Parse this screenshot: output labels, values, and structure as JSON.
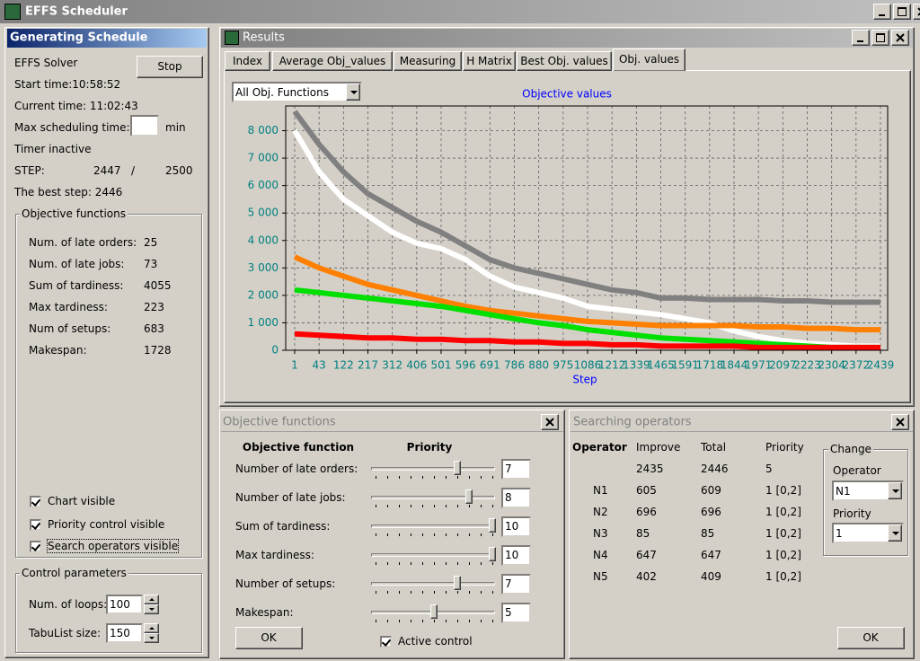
{
  "window": {
    "title": "EFFS Scheduler"
  },
  "generating": {
    "title": "Generating Schedule",
    "solver": "EFFS Solver",
    "stop_button": "Stop",
    "start_time": "Start time:10:58:52",
    "current_time": "Current time: 11:02:43",
    "max_time_label": "Max scheduling time:",
    "max_time_unit": "min",
    "timer": "Timer inactive",
    "step_label": "STEP:",
    "step_value": "2447",
    "step_sep": "/",
    "step_total": "2500",
    "best_step": "The best step: 2446",
    "objective_group": {
      "title": "Objective functions",
      "rows": [
        [
          "Num. of late orders:",
          "25"
        ],
        [
          "Num. of late jobs:",
          "73"
        ],
        [
          "Sum of tardiness:",
          "4055"
        ],
        [
          "Max tardiness:",
          "223"
        ],
        [
          "Num of setups:",
          "683"
        ],
        [
          "Makespan:",
          "1728"
        ]
      ]
    },
    "checkboxes": [
      {
        "label": "Chart visible",
        "checked": true
      },
      {
        "label": "Priority control visible",
        "checked": true
      },
      {
        "label": "Search operators visible",
        "checked": true
      }
    ],
    "control_group": {
      "title": "Control parameters",
      "rows": [
        {
          "label": "Num. of loops:",
          "value": "100"
        },
        {
          "label": "TabuList size:",
          "value": "150"
        }
      ]
    }
  },
  "results": {
    "title": "Results",
    "tabs": [
      "Index",
      "Average Obj_values",
      "Measuring",
      "H Matrix",
      "Best Obj. values",
      "Obj. values"
    ],
    "active_tab": 5,
    "dropdown": "All Obj. Functions"
  },
  "chart_data": {
    "type": "line",
    "title": "Objective values",
    "x_label": "Step",
    "categories": [
      "1",
      "43",
      "122",
      "217",
      "312",
      "406",
      "501",
      "596",
      "691",
      "786",
      "880",
      "975",
      "1086",
      "1212",
      "1339",
      "1465",
      "1591",
      "1718",
      "1844",
      "1971",
      "2097",
      "2223",
      "2304",
      "2372",
      "2439"
    ],
    "series": [
      {
        "color": "#808080",
        "values": [
          8700,
          7500,
          6500,
          5700,
          5200,
          4700,
          4300,
          3800,
          3300,
          3000,
          2800,
          2600,
          2400,
          2200,
          2100,
          1900,
          1900,
          1850,
          1850,
          1850,
          1800,
          1800,
          1750,
          1750,
          1750
        ]
      },
      {
        "color": "#ffffff",
        "values": [
          8000,
          6500,
          5500,
          4900,
          4300,
          3900,
          3700,
          3300,
          2700,
          2300,
          2100,
          1900,
          1600,
          1500,
          1400,
          1300,
          1150,
          1000,
          700,
          500,
          350,
          250,
          200,
          150,
          150
        ]
      },
      {
        "color": "#ff8000",
        "values": [
          3400,
          3000,
          2700,
          2400,
          2200,
          2000,
          1800,
          1600,
          1450,
          1350,
          1250,
          1150,
          1050,
          1000,
          950,
          900,
          900,
          900,
          900,
          850,
          850,
          800,
          800,
          750,
          750
        ]
      },
      {
        "color": "#00e000",
        "values": [
          2200,
          2100,
          2000,
          1900,
          1800,
          1700,
          1600,
          1450,
          1300,
          1150,
          1000,
          900,
          750,
          650,
          550,
          450,
          400,
          350,
          300,
          250,
          200,
          150,
          100,
          100,
          100
        ]
      },
      {
        "color": "#ff0000",
        "values": [
          600,
          550,
          500,
          450,
          450,
          400,
          400,
          350,
          350,
          300,
          300,
          250,
          250,
          200,
          200,
          150,
          150,
          150,
          150,
          100,
          100,
          100,
          100,
          100,
          100
        ]
      }
    ],
    "ylim": [
      0,
      8900
    ],
    "yticks": [
      0,
      {
        "value": 1000,
        "label": "1 000"
      },
      {
        "value": 2000,
        "label": "2 000"
      },
      {
        "value": 3000,
        "label": "3 000"
      },
      {
        "value": 4000,
        "label": "4 000"
      },
      {
        "value": 5000,
        "label": "5 000"
      },
      {
        "value": 6000,
        "label": "6 000"
      },
      {
        "value": 7000,
        "label": "7 000"
      },
      {
        "value": 8000,
        "label": "8 000"
      }
    ],
    "grid": true
  },
  "objective_panel": {
    "title": "Objective functions",
    "col_headers": [
      "Objective function",
      "Priority"
    ],
    "slider_lim": [
      0,
      10
    ],
    "rows": [
      {
        "label": "Number of late orders:",
        "priority": 7
      },
      {
        "label": "Number of late jobs:",
        "priority": 8
      },
      {
        "label": "Sum of tardiness:",
        "priority": 10
      },
      {
        "label": "Max tardiness:",
        "priority": 10
      },
      {
        "label": "Number of setups:",
        "priority": 7
      },
      {
        "label": "Makespan:",
        "priority": 5
      }
    ],
    "ok": "OK",
    "active_control": {
      "label": "Active control",
      "checked": true
    }
  },
  "operators_panel": {
    "title": "Searching operators",
    "headers": [
      "Operator",
      "Improve",
      "Total",
      "Priority"
    ],
    "rows": [
      [
        null,
        "2435",
        "2446",
        "5"
      ],
      [
        "N1",
        "605",
        "609",
        "1 [0,2]"
      ],
      [
        "N2",
        "696",
        "696",
        "1 [0,2]"
      ],
      [
        "N3",
        "85",
        "85",
        "1 [0,2]"
      ],
      [
        "N4",
        "647",
        "647",
        "1 [0,2]"
      ],
      [
        "N5",
        "402",
        "409",
        "1 [0,2]"
      ]
    ],
    "change": {
      "title": "Change",
      "operator_label": "Operator",
      "operator_value": "N1",
      "priority_label": "Priority",
      "priority_value": "1"
    },
    "ok": "OK"
  }
}
